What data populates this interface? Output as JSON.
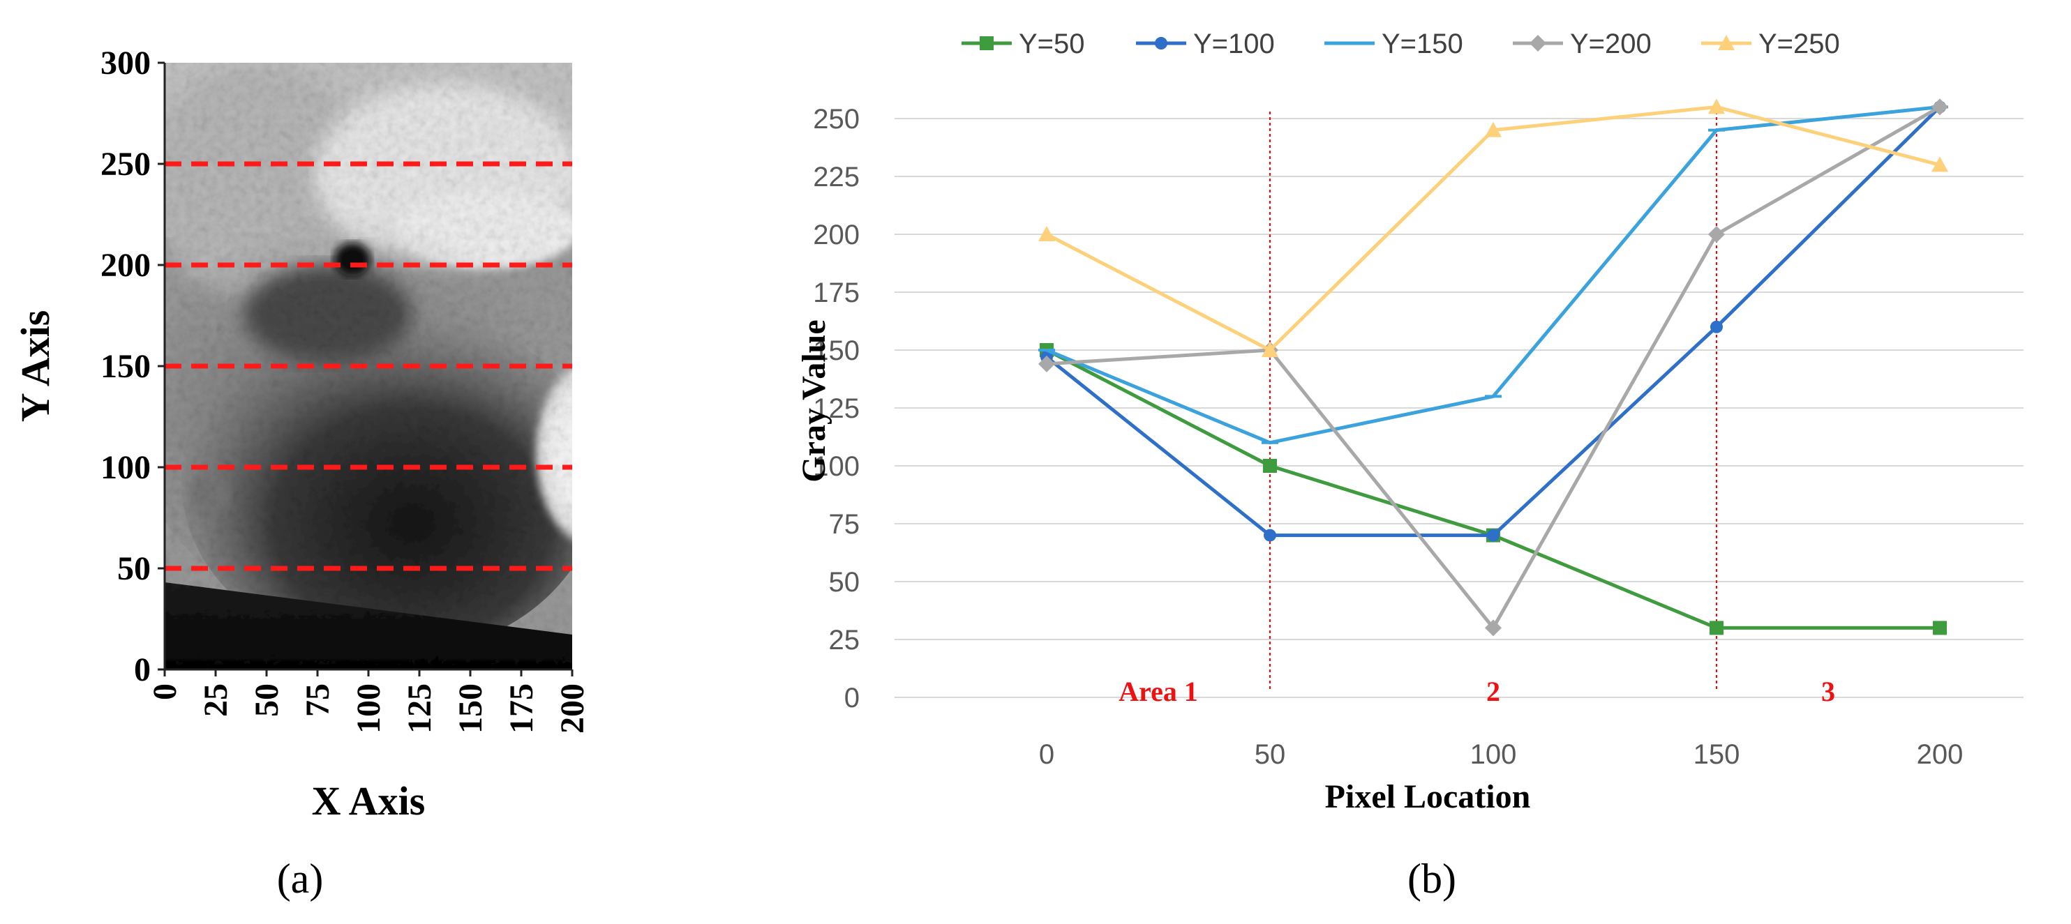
{
  "chart_data": [
    {
      "type": "heatmap",
      "panel_label": "(a)",
      "xlabel": "X Axis",
      "ylabel": "Y Axis",
      "xlim": [
        0,
        200
      ],
      "ylim": [
        0,
        300
      ],
      "xticks": [
        "0",
        "25",
        "50",
        "75",
        "100",
        "125",
        "150",
        "175",
        "200"
      ],
      "yticks": [
        "0",
        "50",
        "100",
        "150",
        "200",
        "250",
        "300"
      ],
      "reference_lines": {
        "orientation": "horizontal",
        "style": "dashed",
        "color": "#ff1a1a",
        "y": [
          50,
          100,
          150,
          200,
          250
        ]
      },
      "image_description": "grayscale X-ray style scan"
    },
    {
      "type": "line",
      "panel_label": "(b)",
      "xlabel": "Pixel Location",
      "ylabel": "Gray Value",
      "x": [
        0,
        50,
        100,
        150,
        200
      ],
      "xticks": [
        "0",
        "50",
        "100",
        "150",
        "200"
      ],
      "ylim": [
        0,
        250
      ],
      "yticks": [
        "0",
        "25",
        "50",
        "75",
        "100",
        "125",
        "150",
        "175",
        "200",
        "225",
        "250"
      ],
      "grid": true,
      "legend_position": "top",
      "series": [
        {
          "name": "Y=50",
          "color": "#3e9b3e",
          "marker": "square",
          "values": [
            150,
            100,
            70,
            30,
            30
          ]
        },
        {
          "name": "Y=100",
          "color": "#2e6fca",
          "marker": "circle",
          "values": [
            147,
            70,
            70,
            160,
            255
          ]
        },
        {
          "name": "Y=150",
          "color": "#3aa2dc",
          "marker": "dash",
          "values": [
            150,
            110,
            130,
            245,
            255
          ]
        },
        {
          "name": "Y=200",
          "color": "#a8a8a8",
          "marker": "diamond",
          "values": [
            144,
            150,
            30,
            200,
            255
          ]
        },
        {
          "name": "Y=250",
          "color": "#fdd07a",
          "marker": "triangle",
          "values": [
            200,
            150,
            245,
            255,
            230
          ]
        }
      ],
      "area_dividers": {
        "x": [
          50,
          150
        ],
        "color": "#ff0000",
        "style": "dotted"
      },
      "area_labels": [
        {
          "text": "Area 1",
          "x": 25
        },
        {
          "text": "2",
          "x": 100
        },
        {
          "text": "3",
          "x": 175
        }
      ]
    }
  ]
}
